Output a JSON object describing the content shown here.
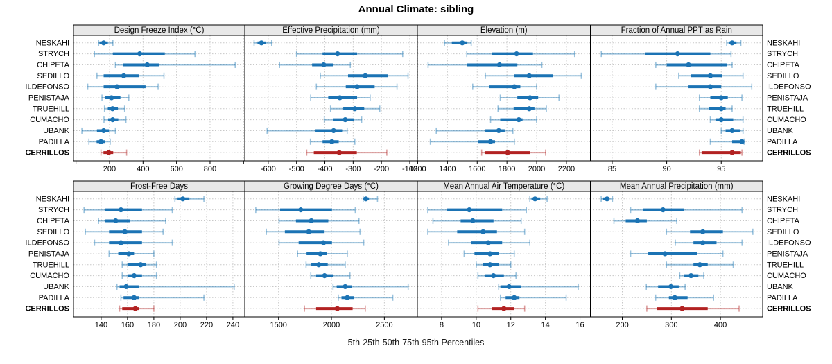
{
  "title": "Annual Climate: sibling",
  "caption": "5th-25th-50th-75th-95th Percentiles",
  "sites": [
    "NESKAHI",
    "STRYCH",
    "CHIPETA",
    "SEDILLO",
    "ILDEFONSO",
    "PENISTAJA",
    "TRUEHILL",
    "CUMACHO",
    "UBANK",
    "PADILLA",
    "CERRILLOS"
  ],
  "highlight_site": "CERRILLOS",
  "colors": {
    "site": "#1b73b4",
    "site_light": "rgba(31,119,180,0.45)",
    "highlight": "#b22222",
    "highlight_light": "rgba(178,34,34,0.45)",
    "strip_bg": "#e8e8e8",
    "grid": "#c8c8c8",
    "border": "#000000"
  },
  "chart_data": {
    "type": "dotplot",
    "note": "horizontal percentile range plot; thin line = 5th-95th, thick line = 25th-75th, dot = median",
    "percentiles": [
      5,
      25,
      50,
      75,
      95
    ],
    "grid_layout": [
      2,
      4
    ],
    "panels": [
      {
        "title": "Design Freeze Index (°C)",
        "row": 0,
        "col": 0,
        "xlim": [
          -15,
          1007
        ],
        "ticks": [
          0,
          200,
          400,
          600,
          800,
          1000
        ],
        "tick_labels": [
          "",
          "200",
          "400",
          "600",
          "800",
          ""
        ],
        "values": [
          [
            135,
            140,
            165,
            190,
            220
          ],
          [
            110,
            220,
            380,
            530,
            710
          ],
          [
            235,
            280,
            425,
            495,
            950
          ],
          [
            125,
            165,
            285,
            375,
            525
          ],
          [
            70,
            165,
            245,
            415,
            490
          ],
          [
            155,
            175,
            212,
            265,
            315
          ],
          [
            170,
            190,
            218,
            250,
            290
          ],
          [
            167,
            192,
            219,
            252,
            298
          ],
          [
            35,
            125,
            165,
            197,
            235
          ],
          [
            77,
            123,
            149,
            174,
            204
          ],
          [
            149,
            164,
            195,
            222,
            302
          ]
        ]
      },
      {
        "title": "Effective Precipitation (mm)",
        "row": 0,
        "col": 1,
        "xlim": [
          -683,
          -73
        ],
        "ticks": [
          -600,
          -500,
          -400,
          -300,
          -200,
          -100
        ],
        "tick_labels": [
          "-600",
          "-500",
          "-400",
          "-300",
          "-200",
          "-100"
        ],
        "values": [
          [
            -650,
            -638,
            -624,
            -608,
            -588
          ],
          [
            -500,
            -408,
            -355,
            -286,
            -125
          ],
          [
            -560,
            -445,
            -404,
            -371,
            -310
          ],
          [
            -416,
            -318,
            -257,
            -176,
            -106
          ],
          [
            -430,
            -326,
            -286,
            -224,
            -145
          ],
          [
            -450,
            -388,
            -347,
            -286,
            -240
          ],
          [
            -380,
            -335,
            -294,
            -261,
            -206
          ],
          [
            -402,
            -371,
            -328,
            -298,
            -270
          ],
          [
            -604,
            -433,
            -369,
            -339,
            -321
          ],
          [
            -451,
            -408,
            -375,
            -351,
            -294
          ],
          [
            -464,
            -439,
            -349,
            -287,
            -181
          ]
        ]
      },
      {
        "title": "Elevation (m)",
        "row": 0,
        "col": 2,
        "xlim": [
          1198,
          2361
        ],
        "ticks": [
          1200,
          1400,
          1600,
          1800,
          2000,
          2200
        ],
        "tick_labels": [
          "1200",
          "1400",
          "1600",
          "1800",
          "2000",
          "2200"
        ],
        "values": [
          [
            1380,
            1430,
            1500,
            1530,
            1560
          ],
          [
            1530,
            1700,
            1865,
            1975,
            2255
          ],
          [
            1270,
            1530,
            1750,
            1870,
            2035
          ],
          [
            1655,
            1850,
            1950,
            2110,
            2300
          ],
          [
            1570,
            1680,
            1850,
            1890,
            2000
          ],
          [
            1755,
            1870,
            1955,
            2010,
            2150
          ],
          [
            1740,
            1845,
            1950,
            1985,
            2065
          ],
          [
            1690,
            1755,
            1880,
            1905,
            2000
          ],
          [
            1325,
            1655,
            1745,
            1785,
            1840
          ],
          [
            1285,
            1605,
            1690,
            1720,
            1850
          ],
          [
            1630,
            1650,
            1805,
            1955,
            2060
          ]
        ]
      },
      {
        "title": "Fraction of Annual PPT as Rain",
        "row": 0,
        "col": 3,
        "xlim": [
          83.0,
          98.8
        ],
        "ticks": [
          85,
          90,
          95
        ],
        "tick_labels": [
          "85",
          "90",
          "95"
        ],
        "values": [
          [
            95.5,
            95.7,
            96.0,
            96.4,
            96.8
          ],
          [
            84.0,
            88.0,
            91.0,
            94.0,
            95.9
          ],
          [
            89.0,
            90.0,
            92.0,
            95.5,
            96.0
          ],
          [
            91.1,
            92.2,
            94.0,
            95.1,
            97.0
          ],
          [
            89.0,
            92.0,
            94.0,
            95.0,
            97.8
          ],
          [
            93.0,
            94.0,
            95.0,
            95.6,
            96.9
          ],
          [
            93.0,
            93.9,
            95.0,
            95.4,
            96.0
          ],
          [
            94.0,
            94.5,
            95.0,
            96.1,
            97.0
          ],
          [
            95.0,
            95.4,
            96.0,
            96.7,
            97.0
          ],
          [
            94.0,
            96.0,
            96.9,
            97.0,
            97.1
          ],
          [
            93.0,
            93.2,
            96.0,
            96.8,
            96.9
          ]
        ]
      },
      {
        "title": "Frost-Free Days",
        "row": 1,
        "col": 0,
        "xlim": [
          119,
          249
        ],
        "ticks": [
          140,
          160,
          180,
          200,
          220,
          240
        ],
        "tick_labels": [
          "140",
          "160",
          "180",
          "200",
          "220",
          "240"
        ],
        "values": [
          [
            196,
            198,
            202,
            207,
            218
          ],
          [
            127,
            143,
            155,
            171,
            194
          ],
          [
            138,
            143,
            151,
            162,
            189
          ],
          [
            128,
            146,
            158,
            171,
            187
          ],
          [
            135,
            146,
            155,
            171,
            194
          ],
          [
            146,
            153,
            161,
            165,
            180
          ],
          [
            156,
            160,
            170,
            174,
            182
          ],
          [
            156,
            160,
            165,
            171,
            182
          ],
          [
            152,
            154,
            159,
            169,
            241
          ],
          [
            155,
            157,
            165,
            169,
            218
          ],
          [
            154,
            156,
            166,
            169,
            180
          ]
        ]
      },
      {
        "title": "Growing Degree Days (°C)",
        "row": 1,
        "col": 1,
        "xlim": [
          1181,
          2812
        ],
        "ticks": [
          1500,
          2000,
          2500
        ],
        "tick_labels": [
          "1500",
          "2000",
          "2500"
        ],
        "values": [
          [
            2300,
            2305,
            2325,
            2355,
            2435
          ],
          [
            1285,
            1515,
            1710,
            2005,
            2225
          ],
          [
            1505,
            1665,
            1810,
            1970,
            2260
          ],
          [
            1385,
            1560,
            1785,
            1935,
            2270
          ],
          [
            1505,
            1690,
            1925,
            2005,
            2305
          ],
          [
            1680,
            1765,
            1895,
            1960,
            2150
          ],
          [
            1760,
            1810,
            1880,
            1965,
            2130
          ],
          [
            1805,
            1855,
            1935,
            2015,
            2175
          ],
          [
            2015,
            2050,
            2130,
            2195,
            2725
          ],
          [
            2065,
            2095,
            2150,
            2215,
            2580
          ],
          [
            1745,
            1855,
            2055,
            2200,
            2320
          ]
        ]
      },
      {
        "title": "Mean Annual Air Temperature (°C)",
        "row": 1,
        "col": 2,
        "xlim": [
          6.6,
          16.6
        ],
        "ticks": [
          8,
          10,
          12,
          14,
          16
        ],
        "tick_labels": [
          "8",
          "10",
          "12",
          "14",
          "16"
        ],
        "values": [
          [
            13.1,
            13.2,
            13.4,
            13.7,
            14.1
          ],
          [
            7.2,
            8.3,
            9.6,
            11.5,
            12.9
          ],
          [
            7.5,
            9.1,
            9.8,
            11.0,
            12.6
          ],
          [
            7.2,
            8.9,
            10.4,
            11.2,
            12.8
          ],
          [
            8.4,
            9.7,
            10.7,
            11.5,
            13.1
          ],
          [
            9.3,
            9.9,
            10.8,
            11.3,
            12.2
          ],
          [
            10.0,
            10.4,
            10.8,
            11.3,
            12.0
          ],
          [
            10.1,
            10.5,
            11.0,
            11.6,
            12.3
          ],
          [
            11.3,
            11.4,
            11.9,
            12.6,
            15.9
          ],
          [
            11.4,
            11.7,
            12.2,
            12.5,
            15.2
          ],
          [
            10.1,
            10.9,
            11.6,
            12.2,
            12.8
          ]
        ]
      },
      {
        "title": "Mean Annual Precipitation (mm)",
        "row": 1,
        "col": 3,
        "xlim": [
          135,
          486
        ],
        "ticks": [
          200,
          300,
          400
        ],
        "tick_labels": [
          "200",
          "300",
          "400"
        ],
        "values": [
          [
            157,
            161,
            169,
            174,
            180
          ],
          [
            217,
            243,
            283,
            326,
            444
          ],
          [
            183,
            207,
            231,
            250,
            311
          ],
          [
            290,
            338,
            364,
            405,
            466
          ],
          [
            308,
            345,
            364,
            392,
            444
          ],
          [
            217,
            253,
            287,
            352,
            405
          ],
          [
            290,
            345,
            358,
            374,
            426
          ],
          [
            317,
            325,
            340,
            355,
            366
          ],
          [
            249,
            273,
            299,
            315,
            328
          ],
          [
            268,
            295,
            307,
            333,
            386
          ],
          [
            250,
            270,
            322,
            374,
            438
          ]
        ]
      }
    ]
  }
}
